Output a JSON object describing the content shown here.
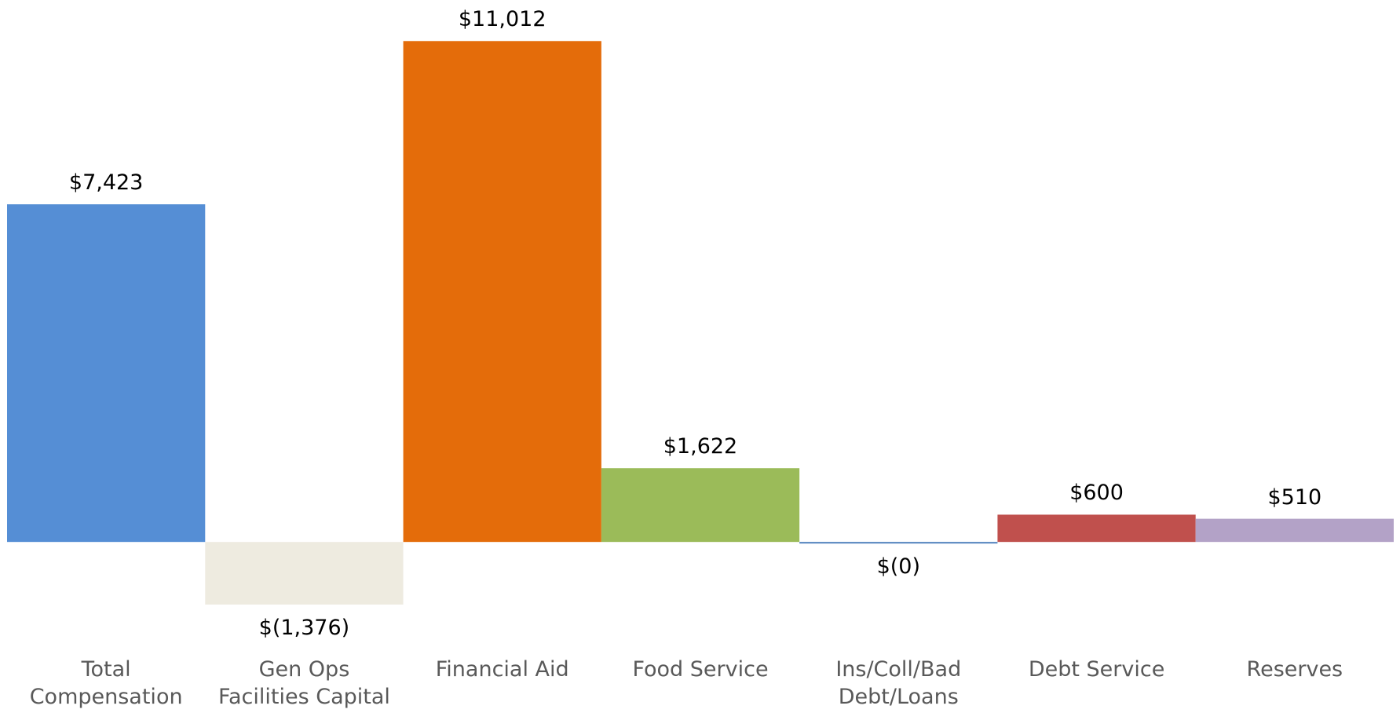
{
  "chart_data": {
    "type": "bar",
    "categories": [
      "Total\nCompensation",
      "Gen Ops\nFacilities Capital",
      "Financial Aid",
      "Food Service",
      "Ins/Coll/Bad\nDebt/Loans",
      "Debt Service",
      "Reserves"
    ],
    "values": [
      7423,
      -1376,
      11012,
      1622,
      -0.3,
      600,
      510
    ],
    "value_labels": [
      "$7,423",
      "$(1,376)",
      "$11,012",
      "$1,622",
      "$(0)",
      "$600",
      "$510"
    ],
    "colors": [
      "#558ed5",
      "#eeebe0",
      "#e46c0a",
      "#9bbb59",
      "#4f81bd",
      "#c0504d",
      "#b3a2c7"
    ],
    "ylim": [
      -2500,
      11500
    ]
  }
}
